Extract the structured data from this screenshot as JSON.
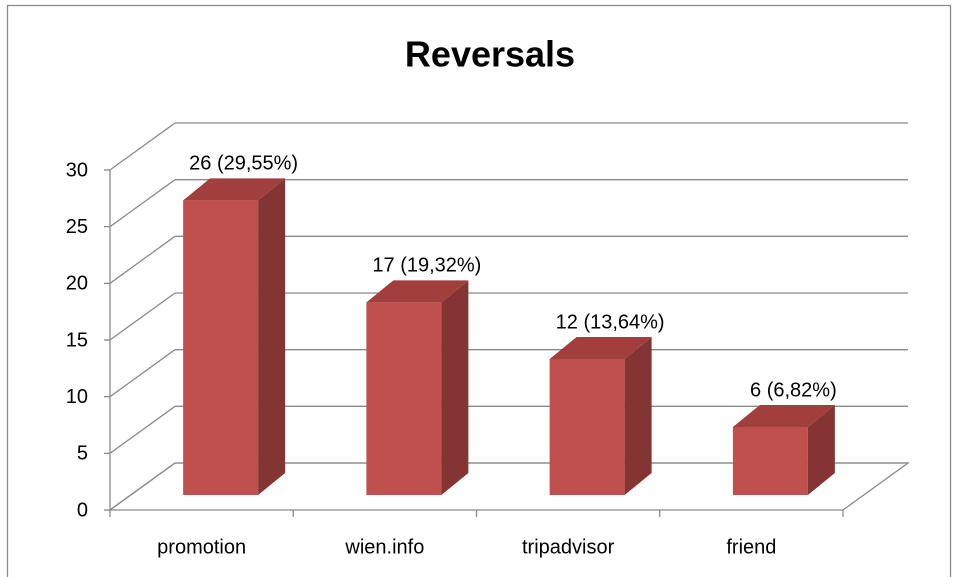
{
  "chart_data": {
    "type": "bar3d",
    "title": "Reversals",
    "categories": [
      "promotion",
      "wien.info",
      "tripadvisor",
      "friend"
    ],
    "values": [
      26,
      17,
      12,
      6
    ],
    "value_labels": [
      "26 (29,55%)",
      "17 (19,32%)",
      "12 (13,64%)",
      "6 (6,82%)"
    ],
    "color": "#c0504d",
    "ylim": [
      0,
      30
    ],
    "yticks": [
      0,
      5,
      10,
      15,
      20,
      25,
      30
    ],
    "grid": true
  }
}
